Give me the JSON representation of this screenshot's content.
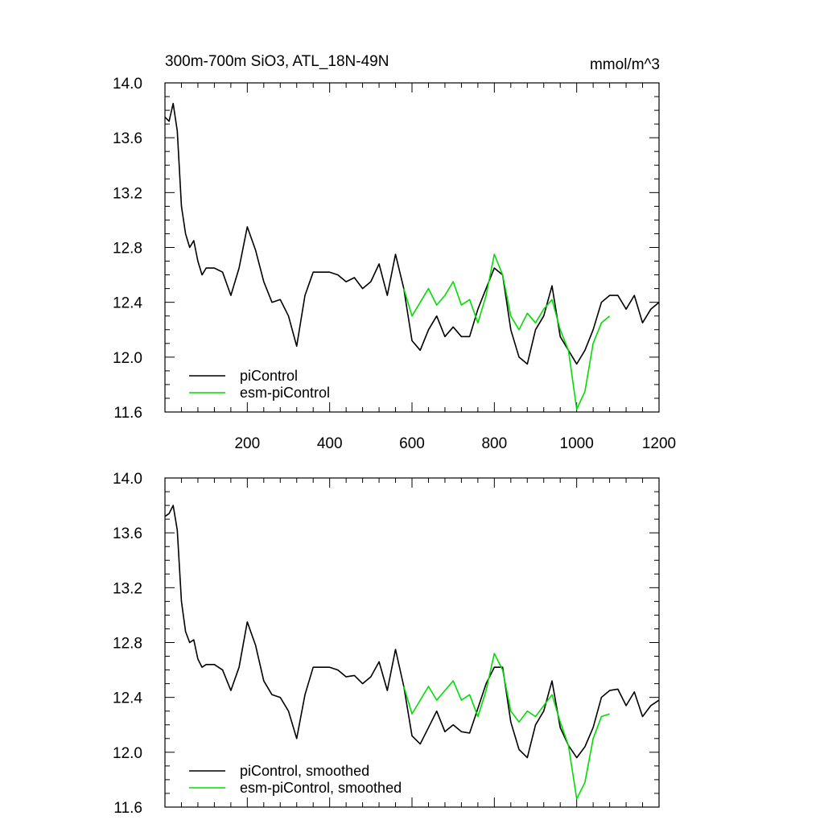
{
  "colors": {
    "piControl": "#000000",
    "esm_piControl": "#00dd00"
  },
  "chart_data": [
    {
      "type": "line",
      "title": "300m-700m SiO3, ATL_18N-49N",
      "units": "mmol/m^3",
      "xlim": [
        0,
        1200
      ],
      "ylim": [
        11.6,
        14.0
      ],
      "x_ticks": [
        200,
        400,
        600,
        800,
        1000,
        1200
      ],
      "x_tick_labels": [
        "200",
        "400",
        "600",
        "800",
        "1000",
        "1200"
      ],
      "y_ticks": [
        11.6,
        12.0,
        12.4,
        12.8,
        13.2,
        13.6,
        14.0
      ],
      "y_tick_labels": [
        "11.6",
        "12.0",
        "12.4",
        "12.8",
        "13.2",
        "13.6",
        "14.0"
      ],
      "grid": false,
      "legend_position": "bottom-left",
      "series": [
        {
          "name": "piControl",
          "color": "#000000",
          "x": [
            0,
            10,
            20,
            30,
            40,
            50,
            60,
            70,
            80,
            90,
            100,
            120,
            140,
            160,
            180,
            200,
            220,
            240,
            260,
            280,
            300,
            320,
            340,
            360,
            380,
            400,
            420,
            440,
            460,
            480,
            500,
            520,
            540,
            560,
            580,
            600,
            620,
            640,
            660,
            680,
            700,
            720,
            740,
            760,
            780,
            800,
            820,
            840,
            860,
            880,
            900,
            920,
            940,
            960,
            980,
            1000,
            1020,
            1040,
            1060,
            1080,
            1100,
            1120,
            1140,
            1160,
            1180,
            1200
          ],
          "y": [
            13.75,
            13.72,
            13.85,
            13.65,
            13.1,
            12.9,
            12.8,
            12.85,
            12.7,
            12.6,
            12.65,
            12.65,
            12.62,
            12.45,
            12.65,
            12.95,
            12.78,
            12.55,
            12.4,
            12.42,
            12.3,
            12.08,
            12.45,
            12.62,
            12.62,
            12.62,
            12.6,
            12.55,
            12.58,
            12.5,
            12.55,
            12.68,
            12.45,
            12.75,
            12.5,
            12.12,
            12.05,
            12.2,
            12.3,
            12.15,
            12.22,
            12.15,
            12.15,
            12.35,
            12.5,
            12.65,
            12.6,
            12.2,
            12.0,
            11.95,
            12.2,
            12.3,
            12.52,
            12.15,
            12.05,
            11.95,
            12.05,
            12.2,
            12.4,
            12.45,
            12.45,
            12.35,
            12.45,
            12.25,
            12.35,
            12.4
          ]
        },
        {
          "name": "esm-piControl",
          "color": "#00dd00",
          "x": [
            580,
            600,
            620,
            640,
            660,
            680,
            700,
            720,
            740,
            760,
            780,
            800,
            820,
            840,
            860,
            880,
            900,
            920,
            940,
            960,
            980,
            1000,
            1020,
            1040,
            1060,
            1080
          ],
          "y": [
            12.5,
            12.3,
            12.4,
            12.5,
            12.38,
            12.45,
            12.55,
            12.38,
            12.42,
            12.25,
            12.45,
            12.75,
            12.6,
            12.3,
            12.2,
            12.32,
            12.25,
            12.35,
            12.42,
            12.2,
            12.05,
            11.62,
            11.75,
            12.1,
            12.25,
            12.3
          ]
        }
      ],
      "legend": [
        "piControl",
        "esm-piControl"
      ]
    },
    {
      "type": "line",
      "title": "",
      "xlim": [
        0,
        1200
      ],
      "ylim": [
        11.6,
        14.0
      ],
      "y_ticks": [
        11.6,
        12.0,
        12.4,
        12.8,
        13.2,
        13.6,
        14.0
      ],
      "y_tick_labels": [
        "11.6",
        "12.0",
        "12.4",
        "12.8",
        "13.2",
        "13.6",
        "14.0"
      ],
      "grid": false,
      "legend_position": "bottom-left",
      "series": [
        {
          "name": "piControl, smoothed",
          "color": "#000000",
          "x": [
            0,
            10,
            20,
            30,
            40,
            50,
            60,
            70,
            80,
            90,
            100,
            120,
            140,
            160,
            180,
            200,
            220,
            240,
            260,
            280,
            300,
            320,
            340,
            360,
            380,
            400,
            420,
            440,
            460,
            480,
            500,
            520,
            540,
            560,
            580,
            600,
            620,
            640,
            660,
            680,
            700,
            720,
            740,
            760,
            780,
            800,
            820,
            840,
            860,
            880,
            900,
            920,
            940,
            960,
            980,
            1000,
            1020,
            1040,
            1060,
            1080,
            1100,
            1120,
            1140,
            1160,
            1180,
            1200
          ],
          "y": [
            13.72,
            13.74,
            13.8,
            13.62,
            13.1,
            12.88,
            12.8,
            12.82,
            12.68,
            12.62,
            12.64,
            12.64,
            12.6,
            12.45,
            12.62,
            12.95,
            12.78,
            12.52,
            12.42,
            12.4,
            12.3,
            12.1,
            12.42,
            12.62,
            12.62,
            12.62,
            12.6,
            12.55,
            12.56,
            12.5,
            12.55,
            12.66,
            12.45,
            12.75,
            12.48,
            12.12,
            12.06,
            12.18,
            12.3,
            12.15,
            12.2,
            12.15,
            12.14,
            12.32,
            12.5,
            12.62,
            12.62,
            12.22,
            12.02,
            11.96,
            12.2,
            12.3,
            12.52,
            12.18,
            12.05,
            11.96,
            12.04,
            12.18,
            12.4,
            12.45,
            12.46,
            12.34,
            12.44,
            12.26,
            12.34,
            12.38
          ]
        },
        {
          "name": "esm-piControl, smoothed",
          "color": "#00dd00",
          "x": [
            580,
            600,
            620,
            640,
            660,
            680,
            700,
            720,
            740,
            760,
            780,
            800,
            820,
            840,
            860,
            880,
            900,
            920,
            940,
            960,
            980,
            1000,
            1020,
            1040,
            1060,
            1080
          ],
          "y": [
            12.48,
            12.28,
            12.38,
            12.48,
            12.38,
            12.45,
            12.52,
            12.38,
            12.42,
            12.26,
            12.45,
            12.72,
            12.6,
            12.3,
            12.22,
            12.3,
            12.26,
            12.34,
            12.42,
            12.22,
            12.05,
            11.66,
            11.78,
            12.1,
            12.26,
            12.28
          ]
        }
      ],
      "legend": [
        "piControl, smoothed",
        "esm-piControl, smoothed"
      ]
    }
  ]
}
